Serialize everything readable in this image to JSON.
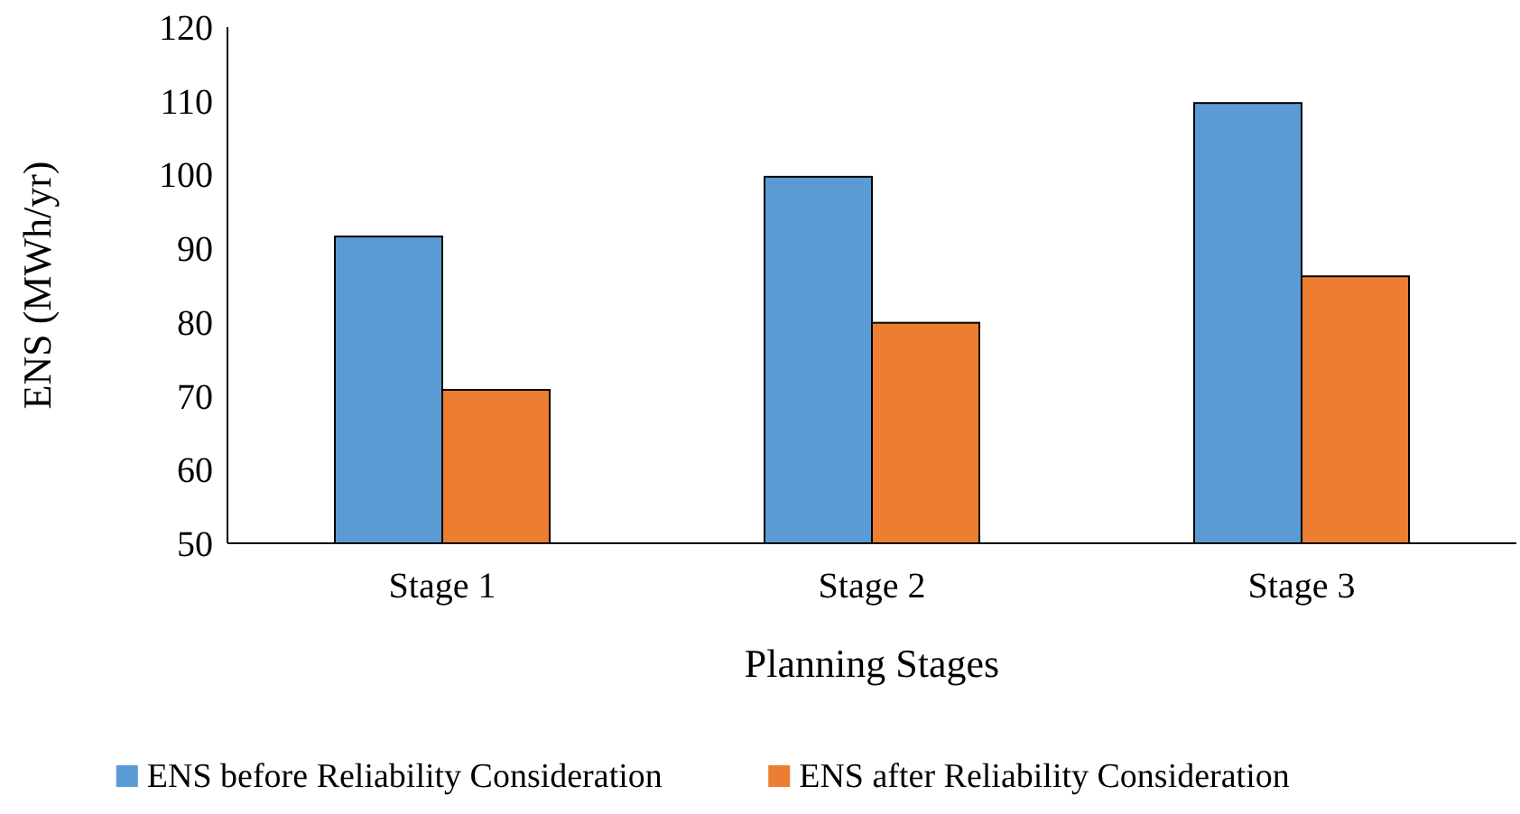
{
  "chart_data": {
    "type": "bar",
    "xlabel": "Planning Stages",
    "ylabel": "ENS (MWh/yr)",
    "categories": [
      "Stage 1",
      "Stage 2",
      "Stage 3"
    ],
    "series": [
      {
        "name": "ENS before Reliability Consideration",
        "color": "#5b9bd5",
        "values": [
          91.6,
          99.7,
          109.7
        ]
      },
      {
        "name": "ENS after Reliability Consideration",
        "color": "#ed7d31",
        "values": [
          70.8,
          79.9,
          86.2
        ]
      }
    ],
    "ylim": [
      50,
      120
    ],
    "yticks": [
      50,
      60,
      70,
      80,
      90,
      100,
      110,
      120
    ],
    "grid": false,
    "legend": "bottom"
  }
}
